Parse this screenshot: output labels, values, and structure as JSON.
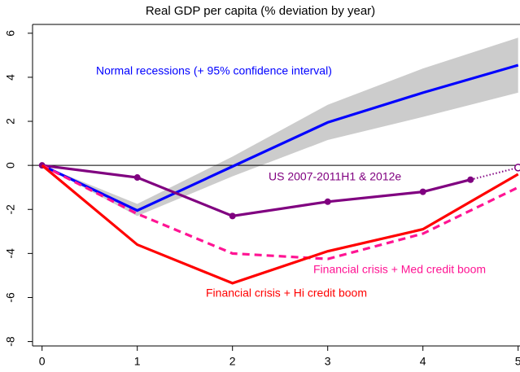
{
  "chart_data": {
    "type": "line",
    "title": "Real GDP per capita (% deviation by year)",
    "xlim": [
      -0.1,
      5.1
    ],
    "xticks": [
      0,
      1,
      2,
      3,
      4,
      5
    ],
    "ylim": [
      -8.2,
      6.4
    ],
    "yticks": [
      -8,
      -6,
      -4,
      -2,
      0,
      2,
      4,
      6
    ],
    "zero_line": true,
    "band": {
      "x": [
        0,
        1,
        2,
        3,
        4,
        5
      ],
      "lower": [
        0,
        -2.3,
        -0.5,
        1.15,
        2.2,
        3.3
      ],
      "upper": [
        0,
        -1.75,
        0.4,
        2.75,
        4.4,
        5.8
      ],
      "color": "#cccccc"
    },
    "series": [
      {
        "name": "Normal recessions (+ 95% confidence interval)",
        "color": "#0000ff",
        "style": "solid",
        "x": [
          0,
          1,
          2,
          3,
          4,
          5
        ],
        "values": [
          0,
          -2.05,
          -0.05,
          1.95,
          3.3,
          4.55
        ]
      },
      {
        "name": "US 2007-2011H1 & 2012e",
        "color": "#800080",
        "style": "solid",
        "markers": true,
        "x": [
          0,
          1,
          2,
          3,
          4,
          4.5
        ],
        "values": [
          0,
          -0.55,
          -2.3,
          -1.65,
          -1.2,
          -0.65
        ]
      },
      {
        "color": "#800080",
        "style": "dotted",
        "hollow_end": true,
        "x": [
          4.5,
          5
        ],
        "values": [
          -0.65,
          -0.1
        ]
      },
      {
        "name": "Financial crisis + Med credit boom",
        "color": "#ff1493",
        "style": "dashed",
        "x": [
          0,
          1,
          2,
          3,
          4,
          5
        ],
        "values": [
          0,
          -2.2,
          -4.0,
          -4.25,
          -3.1,
          -1.0
        ]
      },
      {
        "name": "Financial crisis + Hi credit boom",
        "color": "#ff0000",
        "style": "solid",
        "x": [
          0,
          1,
          2,
          3,
          4,
          5
        ],
        "values": [
          0,
          -3.6,
          -5.35,
          -3.9,
          -2.9,
          -0.4
        ]
      }
    ]
  }
}
